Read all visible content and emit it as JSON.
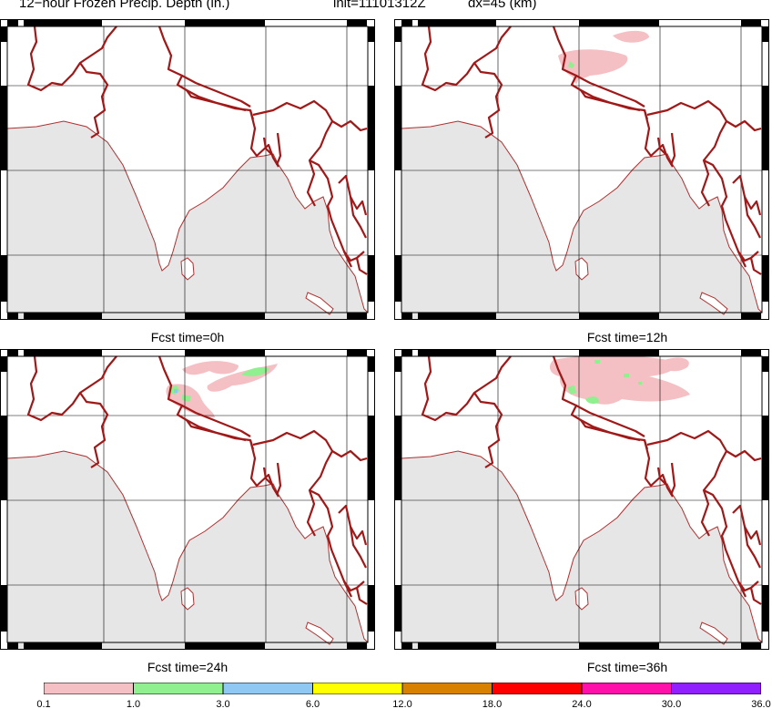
{
  "title": {
    "field": "12−hour Frozen Precip. Depth (in.)",
    "init": "init=11101312Z",
    "dx": "dx=45 (km)"
  },
  "panels": [
    {
      "id": "p0",
      "label": "Fcst time=0h"
    },
    {
      "id": "p12",
      "label": "Fcst time=12h"
    },
    {
      "id": "p24",
      "label": "Fcst time=24h"
    },
    {
      "id": "p36",
      "label": "Fcst time=36h"
    }
  ],
  "colors": {
    "ocean": "#e6e6e6",
    "land": "#ffffff",
    "border": "#a01818",
    "coast": "#b03030",
    "grid": "#000000",
    "frame": "#000000"
  },
  "colorbar": {
    "ticks": [
      "0.1",
      "1.0",
      "3.0",
      "6.0",
      "12.0",
      "18.0",
      "24.0",
      "30.0",
      "36.0"
    ],
    "bins": [
      {
        "from": "0.1",
        "to": "1.0",
        "color": "#f4c0c4"
      },
      {
        "from": "1.0",
        "to": "3.0",
        "color": "#90f090"
      },
      {
        "from": "3.0",
        "to": "6.0",
        "color": "#90c8f4"
      },
      {
        "from": "6.0",
        "to": "12.0",
        "color": "#ffff00"
      },
      {
        "from": "12.0",
        "to": "18.0",
        "color": "#d88000"
      },
      {
        "from": "18.0",
        "to": "24.0",
        "color": "#ff0000"
      },
      {
        "from": "24.0",
        "to": "30.0",
        "color": "#ff10a8"
      },
      {
        "from": "30.0",
        "to": "36.0",
        "color": "#9020ff"
      }
    ]
  }
}
